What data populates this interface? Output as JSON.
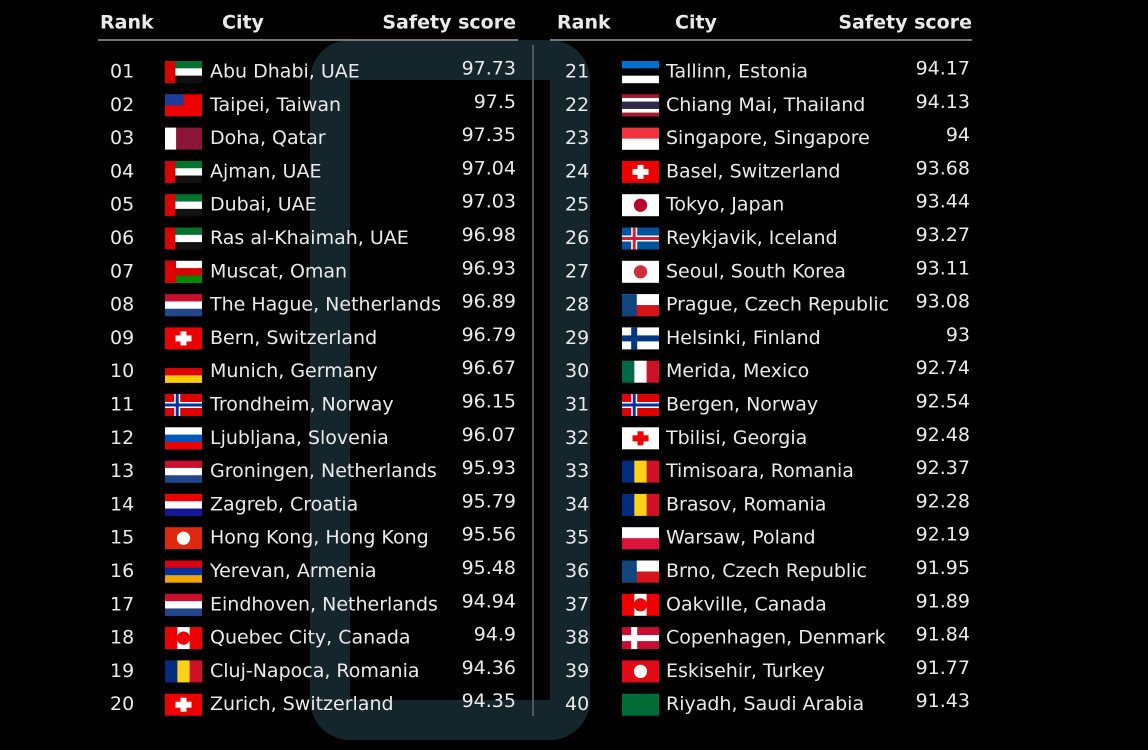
{
  "tables": [
    {
      "header": {
        "rank": "Rank",
        "city": "City",
        "score": "Safety score"
      },
      "rows": [
        {
          "rank": "01",
          "city": "Abu Dhabi, UAE",
          "score": 97.73
        },
        {
          "rank": "02",
          "city": "Taipei, Taiwan",
          "score": 97.5
        },
        {
          "rank": "03",
          "city": "Doha, Qatar",
          "score": 97.35
        },
        {
          "rank": "04",
          "city": "Ajman, UAE",
          "score": 97.04
        },
        {
          "rank": "05",
          "city": "Dubai, UAE",
          "score": 97.03
        },
        {
          "rank": "06",
          "city": "Ras al-Khaimah, UAE",
          "score": 96.98
        },
        {
          "rank": "07",
          "city": "Muscat, Oman",
          "score": 96.93
        },
        {
          "rank": "08",
          "city": "The Hague, Netherlands",
          "score": 96.89
        },
        {
          "rank": "09",
          "city": "Bern, Switzerland",
          "score": 96.79
        },
        {
          "rank": "10",
          "city": "Munich, Germany",
          "score": 96.67
        },
        {
          "rank": "11",
          "city": "Trondheim, Norway",
          "score": 96.15
        },
        {
          "rank": "12",
          "city": "Ljubljana, Slovenia",
          "score": 96.07
        },
        {
          "rank": "13",
          "city": "Groningen, Netherlands",
          "score": 95.93
        },
        {
          "rank": "14",
          "city": "Zagreb, Croatia",
          "score": 95.79
        },
        {
          "rank": "15",
          "city": "Hong Kong, Hong Kong",
          "score": 95.56
        },
        {
          "rank": "16",
          "city": "Yerevan, Armenia",
          "score": 95.48
        },
        {
          "rank": "17",
          "city": "Eindhoven, Netherlands",
          "score": 94.94
        },
        {
          "rank": "18",
          "city": "Quebec City, Canada",
          "score": 94.9
        },
        {
          "rank": "19",
          "city": "Cluj-Napoca, Romania",
          "score": 94.36
        },
        {
          "rank": "20",
          "city": "Zurich, Switzerland",
          "score": 94.35
        }
      ]
    },
    {
      "header": {
        "rank": "Rank",
        "city": "City",
        "score": "Safety score"
      },
      "rows": [
        {
          "rank": "21",
          "city": "Tallinn, Estonia",
          "score": 94.17
        },
        {
          "rank": "22",
          "city": "Chiang Mai, Thailand",
          "score": 94.13
        },
        {
          "rank": "23",
          "city": "Singapore, Singapore",
          "score": 94
        },
        {
          "rank": "24",
          "city": "Basel, Switzerland",
          "score": 93.68
        },
        {
          "rank": "25",
          "city": "Tokyo, Japan",
          "score": 93.44
        },
        {
          "rank": "26",
          "city": "Reykjavik, Iceland",
          "score": 93.27
        },
        {
          "rank": "27",
          "city": "Seoul, South Korea",
          "score": 93.11
        },
        {
          "rank": "28",
          "city": "Prague, Czech Republic",
          "score": 93.08
        },
        {
          "rank": "29",
          "city": "Helsinki, Finland",
          "score": 93
        },
        {
          "rank": "30",
          "city": "Merida, Mexico",
          "score": 92.74
        },
        {
          "rank": "31",
          "city": "Bergen, Norway",
          "score": 92.54
        },
        {
          "rank": "32",
          "city": "Tbilisi, Georgia",
          "score": 92.48
        },
        {
          "rank": "33",
          "city": "Timisoara, Romania",
          "score": 92.37
        },
        {
          "rank": "34",
          "city": "Brasov, Romania",
          "score": 92.28
        },
        {
          "rank": "35",
          "city": "Warsaw, Poland",
          "score": 92.19
        },
        {
          "rank": "36",
          "city": "Brno, Czech Republic",
          "score": 91.95
        },
        {
          "rank": "37",
          "city": "Oakville, Canada",
          "score": 91.89
        },
        {
          "rank": "38",
          "city": "Copenhagen, Denmark",
          "score": 91.84
        },
        {
          "rank": "39",
          "city": "Eskisehir, Turkey",
          "score": 91.77
        },
        {
          "rank": "40",
          "city": "Riyadh, Saudi Arabia",
          "score": 91.43
        }
      ]
    }
  ]
}
